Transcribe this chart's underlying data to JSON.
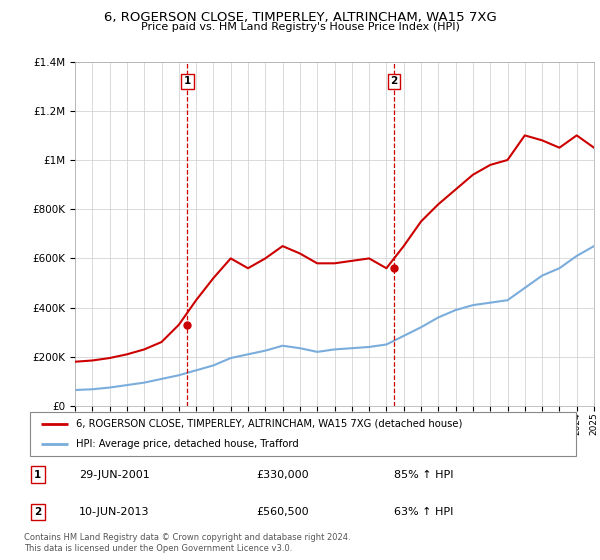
{
  "title": "6, ROGERSON CLOSE, TIMPERLEY, ALTRINCHAM, WA15 7XG",
  "subtitle": "Price paid vs. HM Land Registry's House Price Index (HPI)",
  "legend_line1": "6, ROGERSON CLOSE, TIMPERLEY, ALTRINCHAM, WA15 7XG (detached house)",
  "legend_line2": "HPI: Average price, detached house, Trafford",
  "transaction1_date": "29-JUN-2001",
  "transaction1_price": "£330,000",
  "transaction1_pct": "85% ↑ HPI",
  "transaction1_year": 2001.5,
  "transaction2_date": "10-JUN-2013",
  "transaction2_price": "£560,500",
  "transaction2_pct": "63% ↑ HPI",
  "transaction2_year": 2013.45,
  "footnote": "Contains HM Land Registry data © Crown copyright and database right 2024.\nThis data is licensed under the Open Government Licence v3.0.",
  "red_color": "#cc0000",
  "blue_color": "#7aaddb",
  "dashed_color": "#cc0000",
  "xmin": 1995,
  "xmax": 2025,
  "ymin": 0,
  "ymax": 1400000,
  "hpi_years": [
    1995,
    1996,
    1997,
    1998,
    1999,
    2000,
    2001,
    2002,
    2003,
    2004,
    2005,
    2006,
    2007,
    2008,
    2009,
    2010,
    2011,
    2012,
    2013,
    2014,
    2015,
    2016,
    2017,
    2018,
    2019,
    2020,
    2021,
    2022,
    2023,
    2024,
    2025
  ],
  "hpi_values": [
    65000,
    68000,
    75000,
    85000,
    95000,
    110000,
    125000,
    145000,
    165000,
    195000,
    210000,
    225000,
    245000,
    235000,
    220000,
    230000,
    235000,
    240000,
    250000,
    285000,
    320000,
    360000,
    390000,
    410000,
    420000,
    430000,
    480000,
    530000,
    560000,
    610000,
    650000
  ],
  "red_years": [
    1995,
    1996,
    1997,
    1998,
    1999,
    2000,
    2001,
    2002,
    2003,
    2004,
    2005,
    2006,
    2007,
    2008,
    2009,
    2010,
    2011,
    2012,
    2013,
    2014,
    2015,
    2016,
    2017,
    2018,
    2019,
    2020,
    2021,
    2022,
    2023,
    2024,
    2025
  ],
  "red_values": [
    180000,
    185000,
    195000,
    210000,
    230000,
    260000,
    330000,
    430000,
    520000,
    600000,
    560000,
    600000,
    650000,
    620000,
    580000,
    580000,
    590000,
    600000,
    560000,
    650000,
    750000,
    820000,
    880000,
    940000,
    980000,
    1000000,
    1100000,
    1080000,
    1050000,
    1100000,
    1050000
  ]
}
